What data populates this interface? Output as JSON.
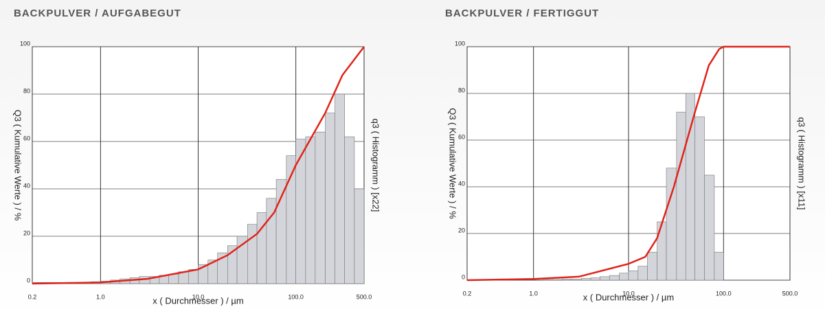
{
  "chart_data": [
    {
      "type": "histogram",
      "title": "BACKPULVER / AUFGABEGUT",
      "xlabel": "x ( Durchmesser ) / µm",
      "ylabel": "Q3 ( Kumulative Werte ) / %",
      "y2label": "q3 ( Histogramm ) [x22]",
      "log_x": true,
      "grid": true,
      "xlim": [
        0.2,
        500
      ],
      "xticks": [
        0.2,
        {
          "value": 1,
          "label": "1.0"
        },
        {
          "value": 10,
          "label": "10.0"
        },
        {
          "value": 100,
          "label": "100.0"
        },
        {
          "value": 500,
          "label": "500.0"
        }
      ],
      "ylim": [
        0,
        100
      ],
      "yticks": [
        0,
        20,
        40,
        60,
        80,
        100
      ],
      "y2lim": [
        0,
        100
      ],
      "bins": [
        0.2,
        0.25,
        0.32,
        0.4,
        0.5,
        0.63,
        0.8,
        1,
        1.26,
        1.58,
        2,
        2.5,
        3.2,
        4,
        5,
        6.3,
        8,
        10,
        12.6,
        15.8,
        20,
        25,
        32,
        40,
        50,
        63,
        80,
        100,
        126,
        158,
        200,
        251,
        316,
        398,
        500
      ],
      "counts": [
        0.5,
        0.5,
        0.5,
        0.5,
        0.5,
        0.5,
        0.8,
        1,
        1.5,
        2,
        2.5,
        3,
        3,
        3.5,
        4,
        5,
        6,
        8,
        10,
        13,
        16,
        20,
        25,
        30,
        36,
        44,
        54,
        61,
        62,
        64,
        72,
        80,
        62,
        40
      ],
      "bar_color": "#d3d5da",
      "line": {
        "x": [
          0.2,
          1,
          3,
          10,
          20,
          40,
          60,
          100,
          200,
          300,
          500
        ],
        "values": [
          0,
          0.5,
          2,
          6,
          12,
          21,
          30,
          50,
          72,
          88,
          100
        ],
        "color": "#e0231a"
      }
    },
    {
      "type": "histogram",
      "title": "BACKPULVER / FERTIGGUT",
      "xlabel": "x ( Durchmesser ) / µm",
      "ylabel": "Q3 ( Kumulative Werte ) / %",
      "y2label": "q3 ( Histogramm ) [x11]",
      "log_x": true,
      "grid": true,
      "xlim": [
        0.2,
        500
      ],
      "xticks": [
        0.2,
        {
          "value": 1,
          "label": "1.0"
        },
        {
          "value": 10,
          "label": "10.0"
        },
        {
          "value": 100,
          "label": "100.0"
        },
        {
          "value": 500,
          "label": "500.0"
        }
      ],
      "ylim": [
        0,
        100
      ],
      "yticks": [
        0,
        20,
        40,
        60,
        80,
        100
      ],
      "y2lim": [
        0,
        100
      ],
      "bins": [
        0.2,
        0.25,
        0.32,
        0.4,
        0.5,
        0.63,
        0.8,
        1,
        1.26,
        1.58,
        2,
        2.5,
        3.2,
        4,
        5,
        6.3,
        8,
        10,
        12.6,
        15.8,
        20,
        25,
        32,
        40,
        50,
        63,
        80,
        100,
        126,
        158,
        200,
        251,
        316,
        398,
        500
      ],
      "counts": [
        0,
        0,
        0,
        0,
        0,
        0,
        0,
        0,
        0.3,
        0.3,
        0.5,
        0.5,
        0.8,
        1,
        1.5,
        2,
        3,
        4,
        6,
        12,
        25,
        48,
        72,
        80,
        70,
        45,
        12,
        0,
        0,
        0,
        0,
        0,
        0,
        0
      ],
      "bar_color": "#d3d5da",
      "line": {
        "x": [
          0.2,
          1,
          3,
          10,
          15,
          20,
          30,
          50,
          70,
          90,
          100,
          500
        ],
        "values": [
          0,
          0.5,
          1.5,
          7,
          10,
          18,
          40,
          72,
          92,
          99,
          100,
          100
        ],
        "color": "#e0231a"
      }
    }
  ]
}
